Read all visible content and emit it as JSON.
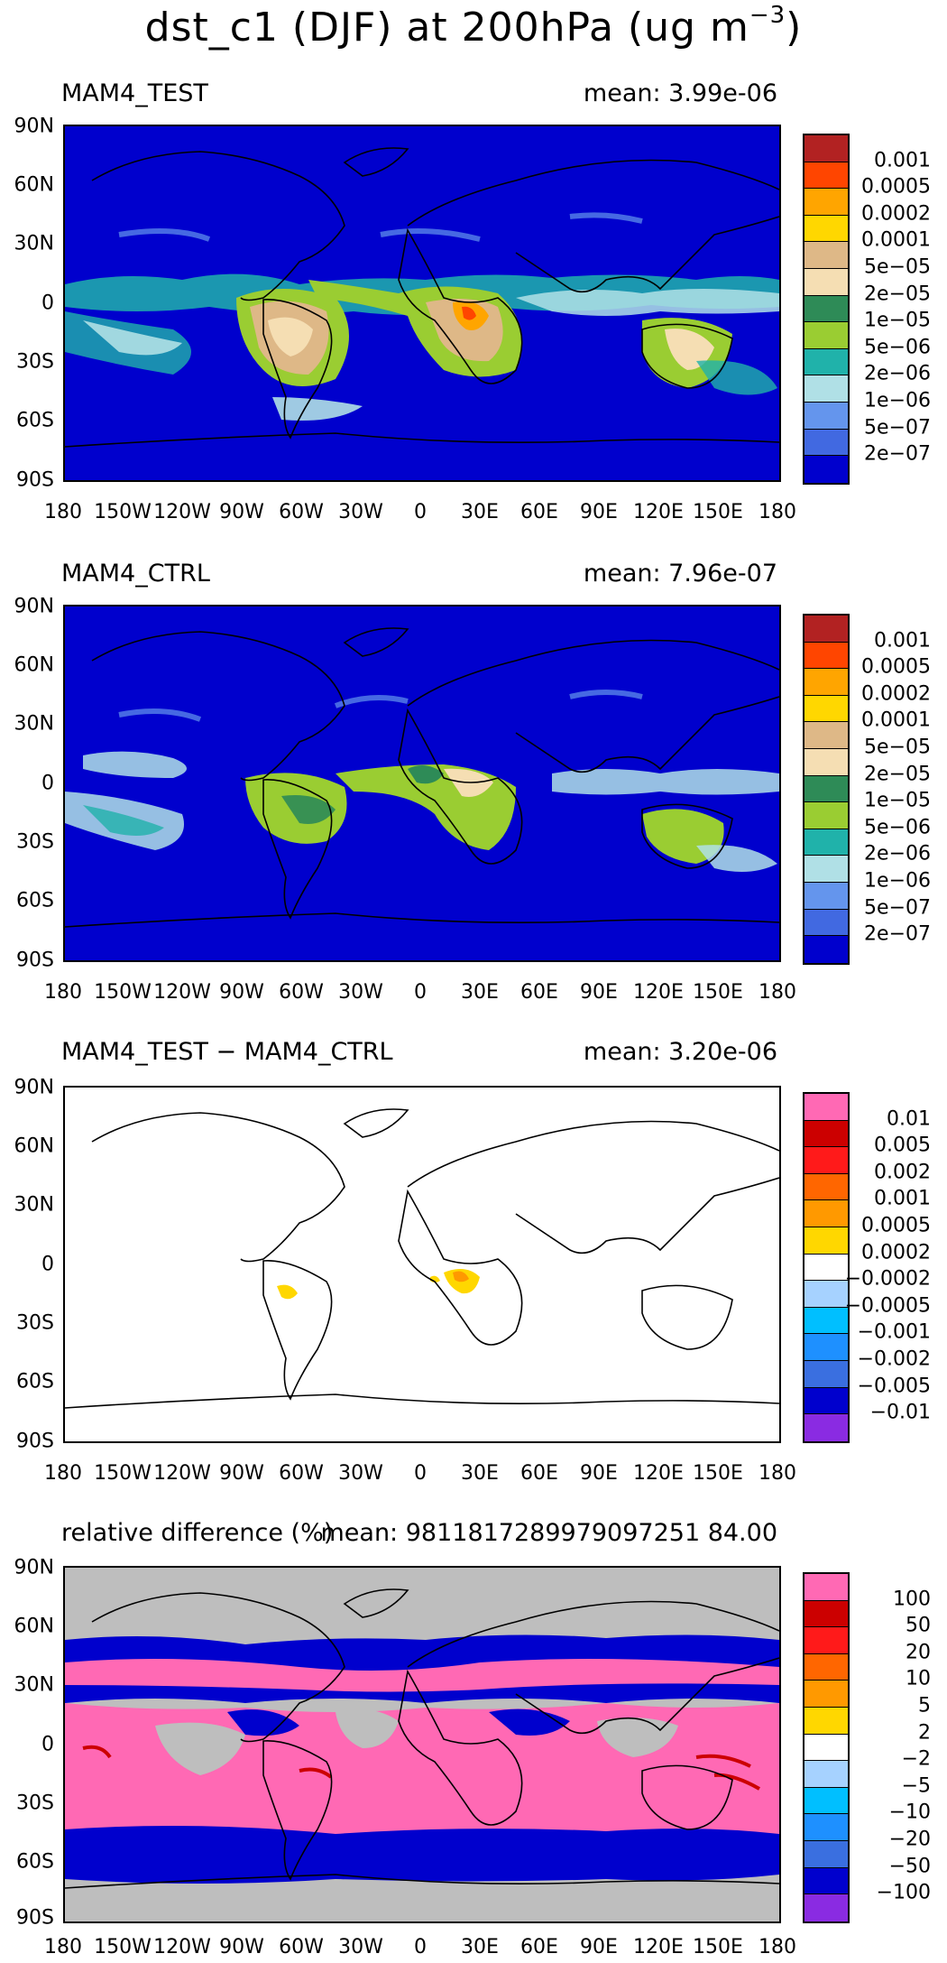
{
  "title": "dst_c1 (DJF) at 200hPa (ug m",
  "title_exp": "−3",
  "title_close": ")",
  "lat_labels": [
    "90N",
    "60N",
    "30N",
    "0",
    "30S",
    "60S",
    "90S"
  ],
  "lon_labels": [
    "180",
    "150W",
    "120W",
    "90W",
    "60W",
    "30W",
    "0",
    "30E",
    "60E",
    "90E",
    "120E",
    "150E",
    "180"
  ],
  "panels": [
    {
      "label": "MAM4_TEST",
      "mean": "mean: 3.99e-06"
    },
    {
      "label": "MAM4_CTRL",
      "mean": "mean: 7.96e-07"
    },
    {
      "label": "MAM4_TEST − MAM4_CTRL",
      "mean": "mean: 3.20e-06"
    },
    {
      "label": "relative difference (%)",
      "mean": "mean: 9811817289979097251 84.00"
    }
  ],
  "colorbars": {
    "absolute": {
      "colors": [
        "#B22222",
        "#FF4500",
        "#FFA500",
        "#FFD700",
        "#DEB887",
        "#F5DEB3",
        "#2E8B57",
        "#9ACD32",
        "#20B2AA",
        "#B0E0E6",
        "#6495ED",
        "#4169E1",
        "#0000CD"
      ],
      "labels": [
        "0.001",
        "0.0005",
        "0.0002",
        "0.0001",
        "5e−05",
        "2e−05",
        "1e−05",
        "5e−06",
        "2e−06",
        "1e−06",
        "5e−07",
        "2e−07"
      ]
    },
    "difference": {
      "colors": [
        "#FF69B4",
        "#CC0000",
        "#FF1A1A",
        "#FF6600",
        "#FF9900",
        "#FFD700",
        "#FFFFFF",
        "#A6D2FF",
        "#00BFFF",
        "#1E90FF",
        "#3A6FE0",
        "#0000CD",
        "#8A2BE2"
      ],
      "labels": [
        "0.01",
        "0.005",
        "0.002",
        "0.001",
        "0.0005",
        "0.0002",
        "−0.0002",
        "−0.0005",
        "−0.001",
        "−0.002",
        "−0.005",
        "−0.01"
      ]
    },
    "relative": {
      "colors": [
        "#FF69B4",
        "#CC0000",
        "#FF1A1A",
        "#FF6600",
        "#FF9900",
        "#FFD700",
        "#FFFFFF",
        "#A6D2FF",
        "#00BFFF",
        "#1E90FF",
        "#3A6FE0",
        "#0000CD",
        "#8A2BE2"
      ],
      "labels": [
        "100",
        "50",
        "20",
        "10",
        "5",
        "2",
        "−2",
        "−5",
        "−10",
        "−20",
        "−50",
        "−100"
      ]
    }
  },
  "colors": {
    "ocean_background": "#0000CD",
    "missing_gray": "#BEBEBE",
    "diff_background": "#FFFFFF",
    "relative_positive": "#FF69B4",
    "relative_negative": "#0000CD"
  }
}
